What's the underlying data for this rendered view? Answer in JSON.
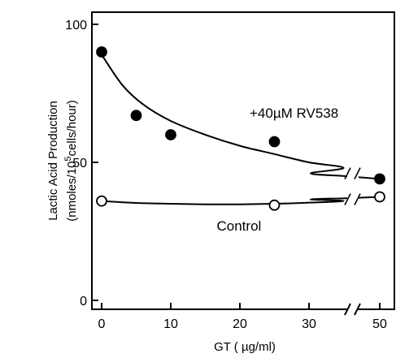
{
  "chart_data": {
    "type": "scatter",
    "title": "",
    "xlabel": "GT ( µg/ml)",
    "ylabel_line1": "Lactic Acid Production",
    "ylabel_line2": "(nmoles/10",
    "ylabel_sup": "5",
    "ylabel_line2_end": "cells/hour)",
    "x_axis_break": {
      "after": 30,
      "resume": 50
    },
    "x_ticks": [
      0,
      10,
      20,
      30,
      50
    ],
    "x_tick_labels": [
      "0",
      "10",
      "20",
      "30",
      "50"
    ],
    "y_ticks": [
      0,
      50,
      100
    ],
    "y_tick_labels": [
      "0",
      "50",
      "100"
    ],
    "ylim": [
      -5,
      102
    ],
    "xlim": [
      -2,
      52
    ],
    "grid": false,
    "series": [
      {
        "name": "+40µM RV538",
        "marker": "filled-circle",
        "x": [
          0,
          5,
          10,
          25,
          50
        ],
        "y": [
          90,
          67,
          60,
          57.5,
          44
        ],
        "fit_curve": [
          [
            0,
            89
          ],
          [
            3,
            78
          ],
          [
            6,
            71
          ],
          [
            10,
            65
          ],
          [
            15,
            60
          ],
          [
            20,
            56
          ],
          [
            25,
            53
          ],
          [
            30,
            50
          ],
          [
            35,
            48
          ],
          [
            40,
            46
          ],
          [
            45,
            45
          ],
          [
            50,
            44
          ]
        ]
      },
      {
        "name": "Control",
        "marker": "open-circle",
        "x": [
          0,
          25,
          50
        ],
        "y": [
          36,
          34.5,
          37.5
        ],
        "fit_curve": [
          [
            0,
            36
          ],
          [
            5,
            35.3
          ],
          [
            10,
            35
          ],
          [
            15,
            34.8
          ],
          [
            20,
            34.8
          ],
          [
            25,
            35
          ],
          [
            30,
            35.4
          ],
          [
            35,
            36
          ],
          [
            40,
            36.6
          ],
          [
            45,
            37
          ],
          [
            50,
            37.5
          ]
        ]
      }
    ],
    "annotations": [
      {
        "text": "+40µM RV538",
        "x": 22,
        "y": 68
      },
      {
        "text": "Control",
        "x": 17,
        "y": 27
      }
    ]
  }
}
